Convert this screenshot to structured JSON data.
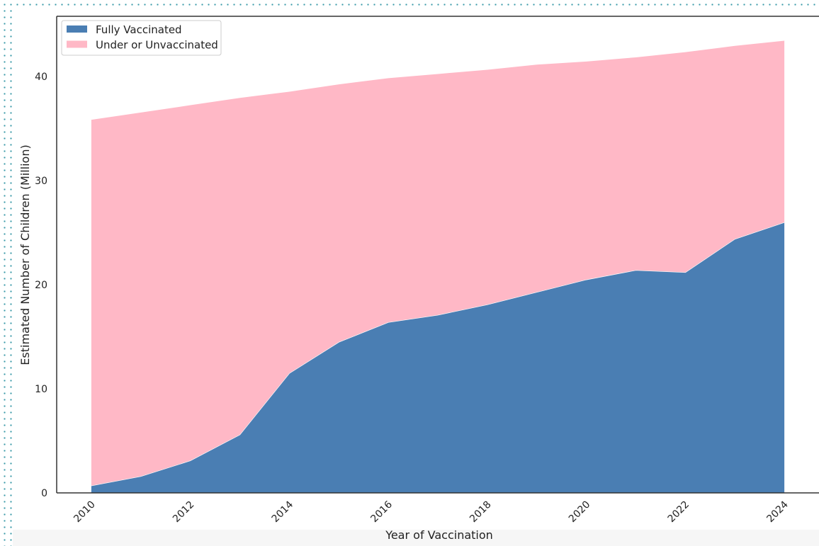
{
  "chart_data": {
    "type": "area",
    "stacked": true,
    "x": [
      2010,
      2011,
      2012,
      2013,
      2014,
      2015,
      2016,
      2017,
      2018,
      2019,
      2020,
      2021,
      2022,
      2023,
      2024
    ],
    "series": [
      {
        "name": "Fully Vaccinated",
        "color": "#4a7eb3",
        "values": [
          0.7,
          1.6,
          3.1,
          5.6,
          11.5,
          14.5,
          16.4,
          17.1,
          18.1,
          19.3,
          20.5,
          21.4,
          21.2,
          24.4,
          26.0
        ]
      },
      {
        "name": "Under or Unvaccinated",
        "color": "#ffb8c6",
        "values": [
          35.2,
          35.0,
          34.2,
          32.4,
          27.1,
          24.8,
          23.5,
          23.2,
          22.6,
          21.9,
          21.0,
          20.5,
          21.2,
          18.6,
          17.5
        ]
      }
    ],
    "xlabel": "Year of Vaccination",
    "ylabel": "Estimated Number of Children (Million)",
    "xticks": [
      2010,
      2012,
      2014,
      2016,
      2018,
      2020,
      2022,
      2024
    ],
    "yticks": [
      0,
      10,
      20,
      30,
      40
    ],
    "xlim": [
      2009.3,
      2024.7
    ],
    "ylim": [
      0,
      45.8
    ],
    "grid": false,
    "legend_position": "top-left"
  }
}
